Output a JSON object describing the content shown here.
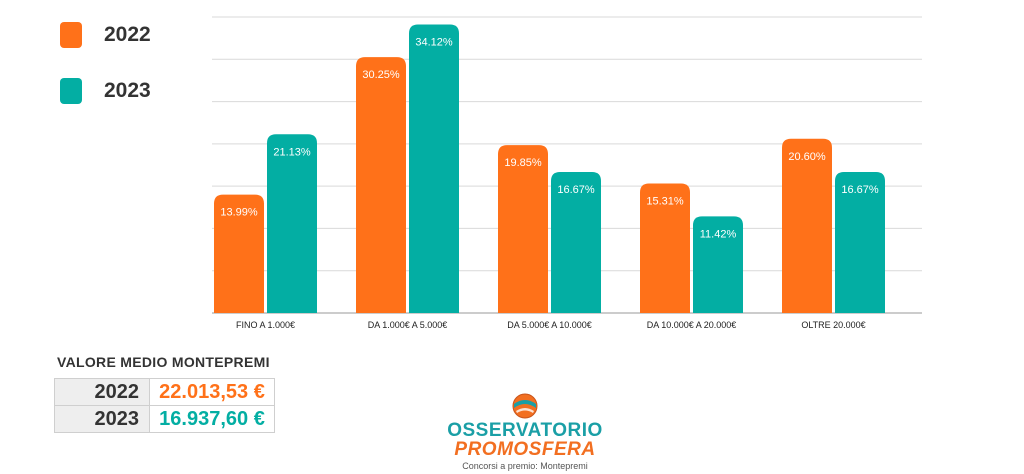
{
  "colors": {
    "c2022": "#FF7119",
    "c2023": "#03AEA3",
    "grid": "#d9d9d9",
    "axis": "#999999"
  },
  "legend": {
    "items": [
      {
        "label": "2022"
      },
      {
        "label": "2023"
      }
    ]
  },
  "chart_data": {
    "type": "bar",
    "categories": [
      "FINO A 1.000€",
      "DA 1.000€ A 5.000€",
      "DA 5.000€ A 10.000€",
      "DA 10.000€ A 20.000€",
      "OLTRE 20.000€"
    ],
    "series": [
      {
        "name": "2022",
        "values": [
          13.99,
          30.25,
          19.85,
          15.31,
          20.6
        ],
        "labels": [
          "13.99%",
          "30.25%",
          "19.85%",
          "15.31%",
          "20.60%"
        ]
      },
      {
        "name": "2023",
        "values": [
          21.13,
          34.12,
          16.67,
          11.42,
          16.67
        ],
        "labels": [
          "21.13%",
          "34.12%",
          "16.67%",
          "11.42%",
          "16.67%"
        ]
      }
    ],
    "ylim": [
      0,
      35
    ],
    "grid": true,
    "legend_position": "top-left"
  },
  "summary": {
    "title": "VALORE MEDIO MONTEPREMI",
    "rows": [
      {
        "year": "2022",
        "value": "22.013,53 €"
      },
      {
        "year": "2023",
        "value": "16.937,60 €"
      }
    ]
  },
  "logo": {
    "line1": "OSSERVATORIO",
    "line2": "PROMOSFERA",
    "tagline": "Concorsi a premio: Montepremi"
  }
}
